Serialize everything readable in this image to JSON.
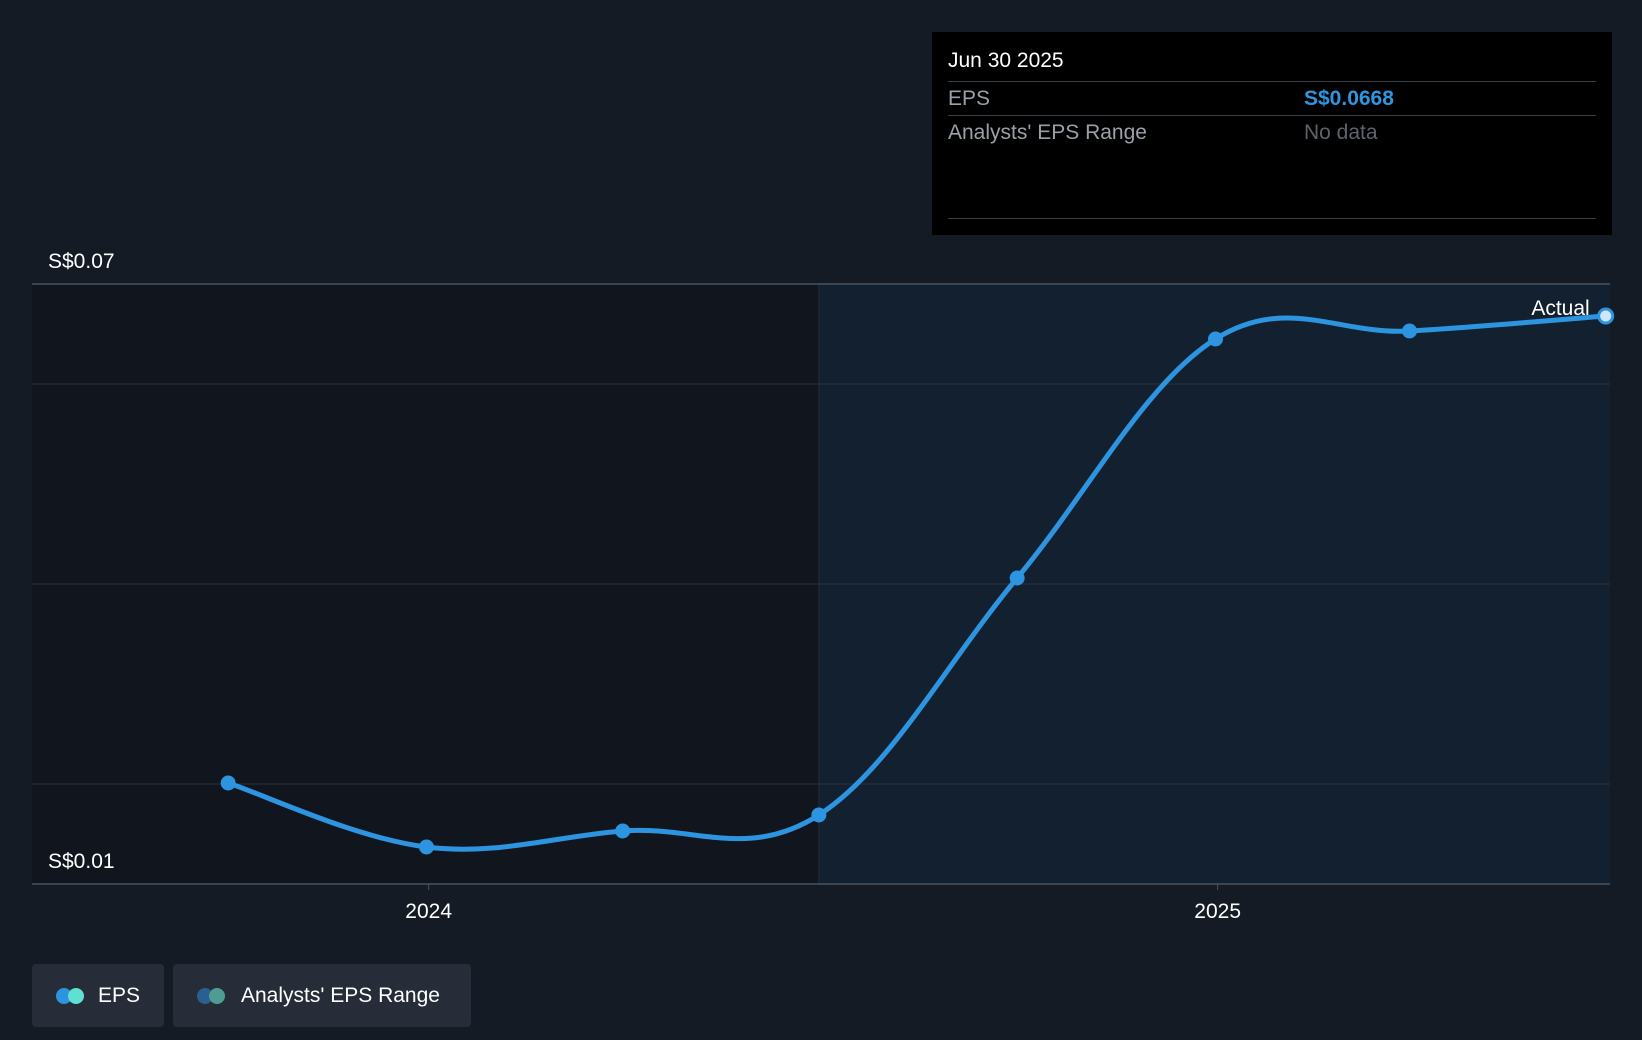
{
  "chart_data": {
    "type": "line",
    "x_dates": [
      "2023-09-30",
      "2023-12-31",
      "2024-03-31",
      "2024-06-30",
      "2024-09-30",
      "2024-12-31",
      "2025-03-31",
      "2025-06-30"
    ],
    "series": [
      {
        "name": "EPS",
        "values": [
          0.0201,
          0.0137,
          0.0153,
          0.0169,
          0.0406,
          0.0645,
          0.0653,
          0.0668
        ]
      }
    ],
    "ylim": [
      0.01,
      0.07
    ],
    "y_tick_labels": [
      "S$0.07",
      "S$0.01"
    ],
    "x_tick_labels": [
      {
        "date": "2024-01-01",
        "label": "2024"
      },
      {
        "date": "2025-01-01",
        "label": "2025"
      }
    ],
    "gridlines_y": [
      0.07,
      0.06,
      0.04,
      0.02,
      0.01
    ],
    "forecast_start": "2024-06-30",
    "end_label": "Actual",
    "colors": {
      "line": "#2d94e0",
      "past_bg": "#11161e",
      "recent_bg": "#13202f",
      "grid": "#2b323c"
    }
  },
  "tooltip": {
    "date": "Jun 30 2025",
    "rows": [
      {
        "label": "EPS",
        "value": "S$0.0668"
      },
      {
        "label": "Analysts' EPS Range",
        "value": "No data"
      }
    ]
  },
  "legend": {
    "items": [
      {
        "label": "EPS",
        "colors": [
          "#2d94e0",
          "#5fe0d2"
        ]
      },
      {
        "label": "Analysts' EPS Range",
        "colors": [
          "#2a5f8f",
          "#4f9c93"
        ]
      }
    ]
  }
}
